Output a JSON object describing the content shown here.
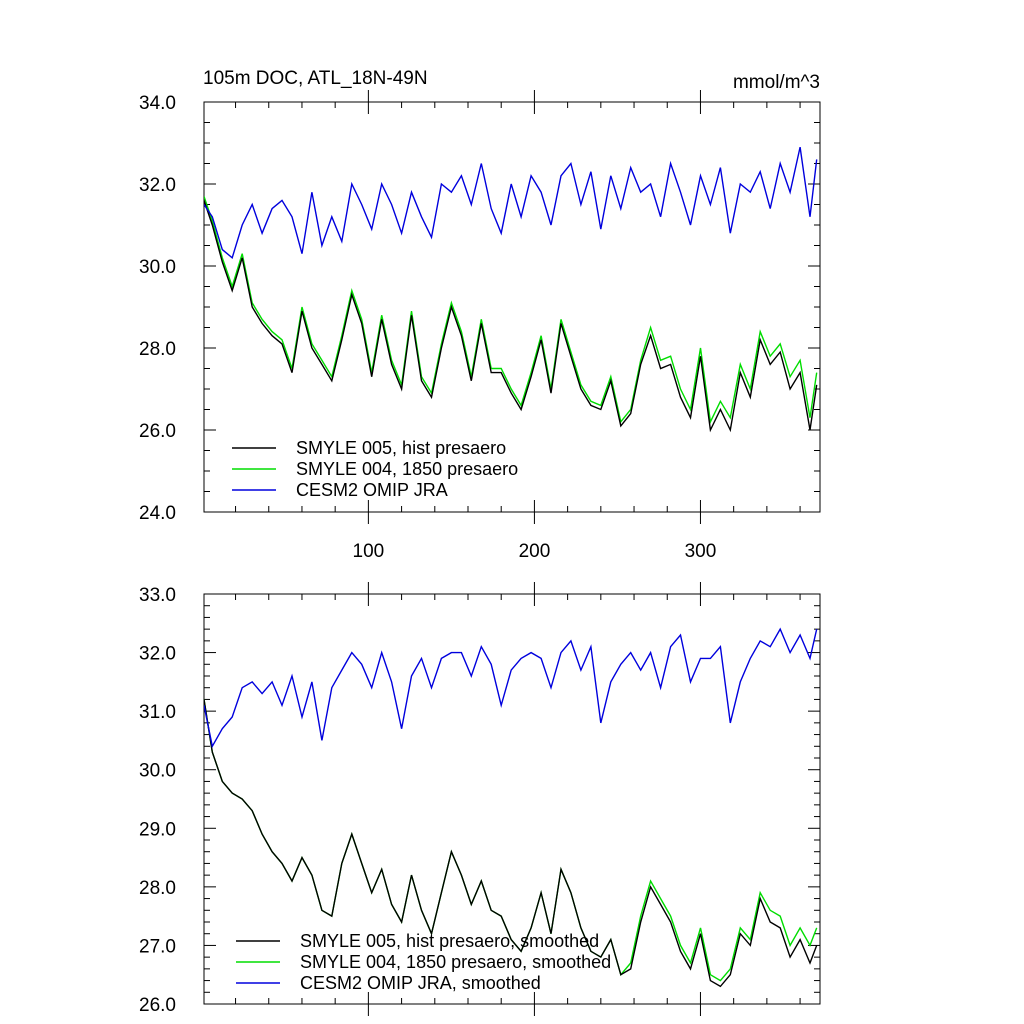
{
  "chart_data": [
    {
      "type": "line",
      "title": "105m DOC, ATL_18N-49N",
      "units": "mmol/m^3",
      "xlim": [
        1,
        372
      ],
      "ylim": [
        24.0,
        34.0
      ],
      "ytick_labels": [
        "24.0",
        "26.0",
        "28.0",
        "30.0",
        "32.0",
        "34.0"
      ],
      "xtick_labels": [
        "100",
        "200",
        "300"
      ],
      "series": [
        {
          "name": "SMYLE 005, hist presaero",
          "color": "#000000",
          "x": [
            1,
            6,
            12,
            18,
            24,
            30,
            36,
            42,
            48,
            54,
            60,
            66,
            72,
            78,
            84,
            90,
            96,
            102,
            108,
            114,
            120,
            126,
            132,
            138,
            144,
            150,
            156,
            162,
            168,
            174,
            180,
            186,
            192,
            198,
            204,
            210,
            216,
            222,
            228,
            234,
            240,
            246,
            252,
            258,
            264,
            270,
            276,
            282,
            288,
            294,
            300,
            306,
            312,
            318,
            324,
            330,
            336,
            342,
            348,
            354,
            360,
            366,
            370
          ],
          "values": [
            31.6,
            31.0,
            30.1,
            29.4,
            30.2,
            29.0,
            28.6,
            28.3,
            28.1,
            27.4,
            28.9,
            28.0,
            27.6,
            27.2,
            28.2,
            29.3,
            28.6,
            27.3,
            28.7,
            27.6,
            27.0,
            28.8,
            27.2,
            26.8,
            28.0,
            29.0,
            28.3,
            27.2,
            28.6,
            27.4,
            27.4,
            26.9,
            26.5,
            27.3,
            28.2,
            26.9,
            28.6,
            27.8,
            27.0,
            26.6,
            26.5,
            27.2,
            26.1,
            26.4,
            27.6,
            28.3,
            27.5,
            27.6,
            26.8,
            26.3,
            27.8,
            26.0,
            26.5,
            26.0,
            27.4,
            26.8,
            28.2,
            27.6,
            27.9,
            27.0,
            27.4,
            26.0,
            27.1
          ]
        },
        {
          "name": "SMYLE 004, 1850 presaero",
          "color": "#00dd00",
          "x": [
            1,
            6,
            12,
            18,
            24,
            30,
            36,
            42,
            48,
            54,
            60,
            66,
            72,
            78,
            84,
            90,
            96,
            102,
            108,
            114,
            120,
            126,
            132,
            138,
            144,
            150,
            156,
            162,
            168,
            174,
            180,
            186,
            192,
            198,
            204,
            210,
            216,
            222,
            228,
            234,
            240,
            246,
            252,
            258,
            264,
            270,
            276,
            282,
            288,
            294,
            300,
            306,
            312,
            318,
            324,
            330,
            336,
            342,
            348,
            354,
            360,
            366,
            370
          ],
          "values": [
            31.7,
            31.1,
            30.2,
            29.5,
            30.3,
            29.1,
            28.7,
            28.4,
            28.2,
            27.5,
            29.0,
            28.1,
            27.7,
            27.3,
            28.3,
            29.4,
            28.7,
            27.4,
            28.8,
            27.7,
            27.1,
            28.9,
            27.3,
            26.9,
            28.1,
            29.1,
            28.4,
            27.3,
            28.7,
            27.5,
            27.5,
            27.0,
            26.6,
            27.4,
            28.3,
            27.0,
            28.7,
            27.9,
            27.1,
            26.7,
            26.6,
            27.3,
            26.2,
            26.5,
            27.7,
            28.5,
            27.7,
            27.8,
            27.0,
            26.5,
            28.0,
            26.2,
            26.7,
            26.3,
            27.6,
            27.0,
            28.4,
            27.8,
            28.1,
            27.3,
            27.7,
            26.3,
            27.4
          ]
        },
        {
          "name": "CESM2 OMIP JRA",
          "color": "#0000dd",
          "x": [
            1,
            6,
            12,
            18,
            24,
            30,
            36,
            42,
            48,
            54,
            60,
            66,
            72,
            78,
            84,
            90,
            96,
            102,
            108,
            114,
            120,
            126,
            132,
            138,
            144,
            150,
            156,
            162,
            168,
            174,
            180,
            186,
            192,
            198,
            204,
            210,
            216,
            222,
            228,
            234,
            240,
            246,
            252,
            258,
            264,
            270,
            276,
            282,
            288,
            294,
            300,
            306,
            312,
            318,
            324,
            330,
            336,
            342,
            348,
            354,
            360,
            366,
            370
          ],
          "values": [
            31.5,
            31.2,
            30.4,
            30.2,
            31.0,
            31.5,
            30.8,
            31.4,
            31.6,
            31.2,
            30.3,
            31.8,
            30.5,
            31.2,
            30.6,
            32.0,
            31.5,
            30.9,
            32.0,
            31.5,
            30.8,
            31.8,
            31.2,
            30.7,
            32.0,
            31.8,
            32.2,
            31.5,
            32.5,
            31.4,
            30.8,
            32.0,
            31.2,
            32.2,
            31.8,
            31.0,
            32.2,
            32.5,
            31.5,
            32.3,
            30.9,
            32.2,
            31.4,
            32.4,
            31.8,
            32.0,
            31.2,
            32.5,
            31.8,
            31.0,
            32.2,
            31.5,
            32.4,
            30.8,
            32.0,
            31.8,
            32.3,
            31.4,
            32.5,
            31.8,
            32.9,
            31.2,
            32.6
          ]
        }
      ]
    },
    {
      "type": "line",
      "title": "",
      "ylim": [
        26.0,
        33.0
      ],
      "xlim": [
        1,
        372
      ],
      "ytick_labels": [
        "26.0",
        "27.0",
        "28.0",
        "29.0",
        "30.0",
        "31.0",
        "32.0",
        "33.0"
      ],
      "series": [
        {
          "name": "SMYLE 005, hist presaero, smoothed",
          "color": "#000000",
          "x": [
            1,
            6,
            12,
            18,
            24,
            30,
            36,
            42,
            48,
            54,
            60,
            66,
            72,
            78,
            84,
            90,
            96,
            102,
            108,
            114,
            120,
            126,
            132,
            138,
            144,
            150,
            156,
            162,
            168,
            174,
            180,
            186,
            192,
            198,
            204,
            210,
            216,
            222,
            228,
            234,
            240,
            246,
            252,
            258,
            264,
            270,
            276,
            282,
            288,
            294,
            300,
            306,
            312,
            318,
            324,
            330,
            336,
            342,
            348,
            354,
            360,
            366,
            370
          ],
          "values": [
            31.2,
            30.3,
            29.8,
            29.6,
            29.5,
            29.3,
            28.9,
            28.6,
            28.4,
            28.1,
            28.5,
            28.2,
            27.6,
            27.5,
            28.4,
            28.9,
            28.4,
            27.9,
            28.3,
            27.7,
            27.4,
            28.2,
            27.6,
            27.2,
            27.9,
            28.6,
            28.2,
            27.7,
            28.1,
            27.6,
            27.5,
            27.1,
            26.9,
            27.3,
            27.9,
            27.2,
            28.3,
            27.9,
            27.3,
            26.9,
            26.8,
            27.1,
            26.5,
            26.6,
            27.4,
            28.0,
            27.7,
            27.4,
            26.9,
            26.6,
            27.2,
            26.4,
            26.3,
            26.5,
            27.2,
            27.0,
            27.8,
            27.4,
            27.3,
            26.8,
            27.1,
            26.7,
            27.0
          ]
        },
        {
          "name": "SMYLE 004, 1850 presaero, smoothed",
          "color": "#00dd00",
          "x": [
            1,
            6,
            12,
            18,
            24,
            30,
            36,
            42,
            48,
            54,
            60,
            66,
            72,
            78,
            84,
            90,
            96,
            102,
            108,
            114,
            120,
            126,
            132,
            138,
            144,
            150,
            156,
            162,
            168,
            174,
            180,
            186,
            192,
            198,
            204,
            210,
            216,
            222,
            228,
            234,
            240,
            246,
            252,
            258,
            264,
            270,
            276,
            282,
            288,
            294,
            300,
            306,
            312,
            318,
            324,
            330,
            336,
            342,
            348,
            354,
            360,
            366,
            370
          ],
          "values": [
            31.2,
            30.3,
            29.8,
            29.6,
            29.5,
            29.3,
            28.9,
            28.6,
            28.4,
            28.1,
            28.5,
            28.2,
            27.6,
            27.5,
            28.4,
            28.9,
            28.4,
            27.9,
            28.3,
            27.7,
            27.4,
            28.2,
            27.6,
            27.2,
            27.9,
            28.6,
            28.2,
            27.7,
            28.1,
            27.6,
            27.5,
            27.1,
            26.9,
            27.3,
            27.9,
            27.2,
            28.3,
            27.9,
            27.3,
            26.9,
            26.8,
            27.1,
            26.5,
            26.7,
            27.5,
            28.1,
            27.8,
            27.5,
            27.0,
            26.7,
            27.3,
            26.5,
            26.4,
            26.6,
            27.3,
            27.1,
            27.9,
            27.6,
            27.5,
            27.0,
            27.3,
            27.0,
            27.3
          ]
        },
        {
          "name": "CESM2 OMIP JRA, smoothed",
          "color": "#0000dd",
          "x": [
            1,
            6,
            12,
            18,
            24,
            30,
            36,
            42,
            48,
            54,
            60,
            66,
            72,
            78,
            84,
            90,
            96,
            102,
            108,
            114,
            120,
            126,
            132,
            138,
            144,
            150,
            156,
            162,
            168,
            174,
            180,
            186,
            192,
            198,
            204,
            210,
            216,
            222,
            228,
            234,
            240,
            246,
            252,
            258,
            264,
            270,
            276,
            282,
            288,
            294,
            300,
            306,
            312,
            318,
            324,
            330,
            336,
            342,
            348,
            354,
            360,
            366,
            370
          ],
          "values": [
            31.1,
            30.4,
            30.7,
            30.9,
            31.4,
            31.5,
            31.3,
            31.5,
            31.1,
            31.6,
            30.9,
            31.5,
            30.5,
            31.4,
            31.7,
            32.0,
            31.8,
            31.4,
            32.0,
            31.5,
            30.7,
            31.6,
            31.9,
            31.4,
            31.9,
            32.0,
            32.0,
            31.6,
            32.1,
            31.8,
            31.1,
            31.7,
            31.9,
            32.0,
            31.9,
            31.4,
            32.0,
            32.2,
            31.7,
            32.1,
            30.8,
            31.5,
            31.8,
            32.0,
            31.7,
            32.0,
            31.4,
            32.1,
            32.3,
            31.5,
            31.9,
            31.9,
            32.1,
            30.8,
            31.5,
            31.9,
            32.2,
            32.1,
            32.4,
            32.0,
            32.3,
            31.9,
            32.4
          ]
        }
      ]
    }
  ]
}
